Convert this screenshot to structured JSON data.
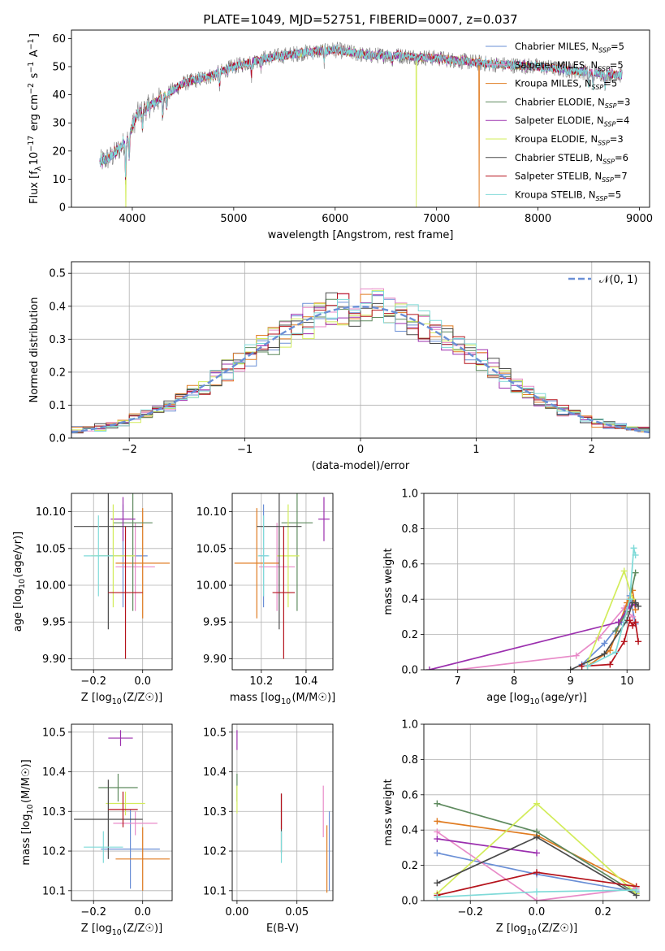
{
  "figure": {
    "title": "PLATE=1049, MJD=52751, FIBERID=0007, z=0.037"
  },
  "models": [
    {
      "name": "Chabrier MILES",
      "nssp": "5",
      "color": "#6a8fd6"
    },
    {
      "name": "Salpeter MILES",
      "nssp": "5",
      "color": "#e88ac8"
    },
    {
      "name": "Kroupa MILES",
      "nssp": "5",
      "color": "#e07b20"
    },
    {
      "name": "Chabrier ELODIE",
      "nssp": "3",
      "color": "#5e8a5e"
    },
    {
      "name": "Salpeter ELODIE",
      "nssp": "4",
      "color": "#9b2fae"
    },
    {
      "name": "Kroupa ELODIE",
      "nssp": "3",
      "color": "#d2ec5a"
    },
    {
      "name": "Chabrier STELIB",
      "nssp": "6",
      "color": "#4a4a4a"
    },
    {
      "name": "Salpeter STELIB",
      "nssp": "7",
      "color": "#b5131c"
    },
    {
      "name": "Kroupa STELIB",
      "nssp": "5",
      "color": "#7fdad8"
    }
  ],
  "chart_data": [
    {
      "id": "spectrum",
      "type": "line",
      "xlabel": "wavelength [Angstrom, rest frame]",
      "ylabel": "Flux [f_λ10^-17 erg cm^-2 s^-1 A^-1]",
      "xlim": [
        3400,
        9100
      ],
      "ylim": [
        0,
        63
      ],
      "xticks": [
        4000,
        5000,
        6000,
        7000,
        8000,
        9000
      ],
      "yticks": [
        0,
        10,
        20,
        30,
        40,
        50,
        60
      ],
      "grid": false,
      "legend_position": "top-right",
      "observed_color": "#7a7a7a",
      "observed_range": [
        3680,
        8830
      ],
      "continuum": [
        [
          3680,
          16
        ],
        [
          3800,
          18
        ],
        [
          3950,
          24
        ],
        [
          4050,
          33
        ],
        [
          4250,
          38
        ],
        [
          4500,
          44
        ],
        [
          4800,
          47
        ],
        [
          5000,
          50
        ],
        [
          5300,
          53
        ],
        [
          5700,
          55
        ],
        [
          6000,
          56
        ],
        [
          6300,
          54
        ],
        [
          6600,
          54
        ],
        [
          7000,
          53
        ],
        [
          7500,
          51
        ],
        [
          8000,
          50
        ],
        [
          8500,
          48
        ],
        [
          8830,
          47
        ]
      ],
      "absorption_lines": [
        [
          3934,
          12
        ],
        [
          3969,
          10
        ],
        [
          4102,
          6
        ],
        [
          4300,
          8
        ],
        [
          4340,
          6
        ],
        [
          4861,
          5
        ],
        [
          5175,
          5
        ],
        [
          5270,
          3
        ],
        [
          5890,
          4
        ],
        [
          6563,
          3
        ],
        [
          8498,
          5
        ],
        [
          8542,
          6
        ],
        [
          8662,
          5
        ]
      ],
      "dropouts": [
        {
          "model": 5,
          "x": 3935
        },
        {
          "model": 5,
          "x": 6800
        },
        {
          "model": 2,
          "x": 7420
        }
      ]
    },
    {
      "id": "residuals",
      "type": "histogram",
      "xlabel": "(data-model)/error",
      "ylabel": "Normed distribution",
      "xlim": [
        -2.5,
        2.5
      ],
      "ylim": [
        0,
        0.535
      ],
      "xticks": [
        -2,
        -1,
        0,
        1,
        2
      ],
      "yticks": [
        0.0,
        0.1,
        0.2,
        0.3,
        0.4,
        0.5
      ],
      "grid": true,
      "bin_width": 0.1,
      "reference_label": "𝒩(0, 1)",
      "reference_color": "#6a8fd6",
      "legend_position": "top-right"
    },
    {
      "id": "z_vs_age",
      "type": "scatter",
      "xlabel": "Z [log10(Z/Z☉)]",
      "ylabel": "age  [log10(age/yr)]",
      "xlim": [
        -0.29,
        0.12
      ],
      "ylim": [
        9.885,
        10.125
      ],
      "xticks": [
        -0.2,
        0.0
      ],
      "yticks": [
        9.9,
        9.95,
        10.0,
        10.05,
        10.1
      ],
      "grid": true,
      "points": [
        {
          "model": 0,
          "x": -0.08,
          "y": 10.04,
          "xerr": 0.1,
          "yerr": 0.07
        },
        {
          "model": 1,
          "x": -0.03,
          "y": 10.025,
          "xerr": 0.08,
          "yerr": 0.06
        },
        {
          "model": 2,
          "x": 0.0,
          "y": 10.03,
          "xerr": 0.11,
          "yerr": 0.075
        },
        {
          "model": 3,
          "x": -0.04,
          "y": 10.085,
          "xerr": 0.08,
          "yerr": 0.12
        },
        {
          "model": 4,
          "x": -0.08,
          "y": 10.09,
          "xerr": 0.05,
          "yerr": 0.03
        },
        {
          "model": 5,
          "x": -0.12,
          "y": 10.04,
          "xerr": 0.09,
          "yerr": 0.07
        },
        {
          "model": 6,
          "x": -0.14,
          "y": 10.08,
          "xerr": 0.14,
          "yerr": 0.14
        },
        {
          "model": 7,
          "x": -0.07,
          "y": 9.99,
          "xerr": 0.07,
          "yerr": 0.09
        },
        {
          "model": 8,
          "x": -0.18,
          "y": 10.04,
          "xerr": 0.06,
          "yerr": 0.055
        }
      ]
    },
    {
      "id": "mass_vs_age",
      "type": "scatter",
      "xlabel": "mass [log10(M/M☉)]",
      "ylabel": "",
      "xlim": [
        10.07,
        10.52
      ],
      "ylim": [
        9.885,
        10.125
      ],
      "xticks": [
        10.2,
        10.4
      ],
      "yticks": [
        9.9,
        9.95,
        10.0,
        10.05,
        10.1
      ],
      "grid": true,
      "points": [
        {
          "model": 0,
          "x": 10.21,
          "y": 10.04,
          "xerr": 0.02,
          "yerr": 0.07
        },
        {
          "model": 1,
          "x": 10.27,
          "y": 10.025,
          "xerr": 0.08,
          "yerr": 0.06
        },
        {
          "model": 2,
          "x": 10.18,
          "y": 10.03,
          "xerr": 0.1,
          "yerr": 0.075
        },
        {
          "model": 3,
          "x": 10.36,
          "y": 10.085,
          "xerr": 0.07,
          "yerr": 0.12
        },
        {
          "model": 4,
          "x": 10.48,
          "y": 10.09,
          "xerr": 0.025,
          "yerr": 0.03
        },
        {
          "model": 5,
          "x": 10.32,
          "y": 10.04,
          "xerr": 0.05,
          "yerr": 0.07
        },
        {
          "model": 6,
          "x": 10.28,
          "y": 10.08,
          "xerr": 0.1,
          "yerr": 0.14
        },
        {
          "model": 7,
          "x": 10.3,
          "y": 9.99,
          "xerr": 0.05,
          "yerr": 0.09
        },
        {
          "model": 8,
          "x": 10.21,
          "y": 10.04,
          "xerr": 0.025,
          "yerr": 0.055
        }
      ]
    },
    {
      "id": "age_weights",
      "type": "line",
      "xlabel": "age  [log10(age/yr)]",
      "ylabel": "mass weight",
      "xlim": [
        6.4,
        10.4
      ],
      "ylim": [
        0.0,
        1.0
      ],
      "xticks": [
        7,
        8,
        9,
        10
      ],
      "yticks": [
        0.0,
        0.2,
        0.4,
        0.6,
        0.8,
        1.0
      ],
      "grid": true,
      "series": [
        {
          "model": 0,
          "x": [
            9.2,
            9.6,
            9.9,
            10.05,
            10.15
          ],
          "y": [
            0.03,
            0.15,
            0.27,
            0.42,
            0.26
          ]
        },
        {
          "model": 1,
          "x": [
            7.0,
            9.1,
            9.5,
            9.95,
            10.1
          ],
          "y": [
            0.0,
            0.08,
            0.18,
            0.35,
            0.3
          ]
        },
        {
          "model": 2,
          "x": [
            9.3,
            9.7,
            10.0,
            10.1,
            10.15
          ],
          "y": [
            0.02,
            0.11,
            0.38,
            0.45,
            0.34
          ]
        },
        {
          "model": 3,
          "x": [
            9.8,
            10.0,
            10.15
          ],
          "y": [
            0.22,
            0.33,
            0.55
          ]
        },
        {
          "model": 4,
          "x": [
            6.5,
            9.85,
            10.05,
            10.15
          ],
          "y": [
            0.0,
            0.27,
            0.36,
            0.37
          ]
        },
        {
          "model": 5,
          "x": [
            9.3,
            9.95,
            10.1
          ],
          "y": [
            0.04,
            0.56,
            0.4
          ]
        },
        {
          "model": 6,
          "x": [
            9.0,
            9.6,
            10.0,
            10.1,
            10.15,
            10.2
          ],
          "y": [
            0.0,
            0.09,
            0.28,
            0.38,
            0.38,
            0.36
          ]
        },
        {
          "model": 7,
          "x": [
            9.2,
            9.7,
            9.95,
            10.05,
            10.1,
            10.15,
            10.2
          ],
          "y": [
            0.02,
            0.03,
            0.16,
            0.28,
            0.25,
            0.27,
            0.16
          ]
        },
        {
          "model": 8,
          "x": [
            9.3,
            9.8,
            10.05,
            10.12,
            10.15
          ],
          "y": [
            0.02,
            0.1,
            0.4,
            0.69,
            0.65
          ]
        }
      ]
    },
    {
      "id": "z_vs_mass",
      "type": "scatter",
      "xlabel": "Z [log10(Z/Z☉)]",
      "ylabel": "mass [log10(M/M☉)]",
      "xlim": [
        -0.29,
        0.12
      ],
      "ylim": [
        10.075,
        10.52
      ],
      "xticks": [
        -0.2,
        0.0
      ],
      "yticks": [
        10.1,
        10.2,
        10.3,
        10.4,
        10.5
      ],
      "grid": true,
      "points": [
        {
          "model": 0,
          "x": -0.05,
          "y": 10.205,
          "xerr": 0.12,
          "yerr": 0.1
        },
        {
          "model": 1,
          "x": -0.03,
          "y": 10.27,
          "xerr": 0.09,
          "yerr": 0.03
        },
        {
          "model": 2,
          "x": 0.0,
          "y": 10.18,
          "xerr": 0.11,
          "yerr": 0.08
        },
        {
          "model": 3,
          "x": -0.1,
          "y": 10.36,
          "xerr": 0.08,
          "yerr": 0.035
        },
        {
          "model": 4,
          "x": -0.09,
          "y": 10.485,
          "xerr": 0.05,
          "yerr": 0.02
        },
        {
          "model": 5,
          "x": -0.07,
          "y": 10.32,
          "xerr": 0.08,
          "yerr": 0.03
        },
        {
          "model": 6,
          "x": -0.14,
          "y": 10.28,
          "xerr": 0.14,
          "yerr": 0.1
        },
        {
          "model": 7,
          "x": -0.08,
          "y": 10.305,
          "xerr": 0.06,
          "yerr": 0.045
        },
        {
          "model": 8,
          "x": -0.16,
          "y": 10.21,
          "xerr": 0.08,
          "yerr": 0.04
        }
      ]
    },
    {
      "id": "ebv_vs_mass",
      "type": "scatter",
      "xlabel": "E(B-V)",
      "ylabel": "",
      "xlim": [
        -0.004,
        0.08
      ],
      "ylim": [
        10.075,
        10.52
      ],
      "xticks": [
        0.0,
        0.05
      ],
      "yticks": [
        10.1,
        10.2,
        10.3,
        10.4,
        10.5
      ],
      "grid": true,
      "points": [
        {
          "model": 0,
          "x": 0.077,
          "y": 10.2,
          "xerr": 0.0,
          "yerr": 0.1
        },
        {
          "model": 1,
          "x": 0.072,
          "y": 10.3,
          "xerr": 0.0,
          "yerr": 0.065
        },
        {
          "model": 2,
          "x": 0.075,
          "y": 10.18,
          "xerr": 0.0,
          "yerr": 0.085
        },
        {
          "model": 3,
          "x": 0.0,
          "y": 10.36,
          "xerr": 0.0,
          "yerr": 0.035
        },
        {
          "model": 4,
          "x": 0.0,
          "y": 10.48,
          "xerr": 0.0,
          "yerr": 0.025
        },
        {
          "model": 5,
          "x": 0.0,
          "y": 10.33,
          "xerr": 0.0,
          "yerr": 0.035
        },
        {
          "model": 6,
          "x": 0.037,
          "y": 10.27,
          "xerr": 0.0,
          "yerr": 0.075
        },
        {
          "model": 7,
          "x": 0.037,
          "y": 10.3,
          "xerr": 0.0,
          "yerr": 0.045
        },
        {
          "model": 8,
          "x": 0.037,
          "y": 10.21,
          "xerr": 0.0,
          "yerr": 0.04
        }
      ]
    },
    {
      "id": "z_weights",
      "type": "line",
      "xlabel": "Z [log10(Z/Z☉)]",
      "ylabel": "mass weight",
      "xlim": [
        -0.34,
        0.34
      ],
      "ylim": [
        0.0,
        1.0
      ],
      "xticks": [
        -0.2,
        0.0,
        0.2
      ],
      "yticks": [
        0.0,
        0.2,
        0.4,
        0.6,
        0.8,
        1.0
      ],
      "grid": true,
      "series": [
        {
          "model": 0,
          "x": [
            -0.3,
            0.0,
            0.3
          ],
          "y": [
            0.27,
            0.15,
            0.05
          ]
        },
        {
          "model": 1,
          "x": [
            -0.3,
            0.0,
            0.3
          ],
          "y": [
            0.39,
            0.0,
            0.07
          ]
        },
        {
          "model": 2,
          "x": [
            -0.3,
            0.0,
            0.3
          ],
          "y": [
            0.45,
            0.37,
            0.08
          ]
        },
        {
          "model": 3,
          "x": [
            -0.3,
            0.0,
            0.3
          ],
          "y": [
            0.55,
            0.39,
            0.04
          ]
        },
        {
          "model": 4,
          "x": [
            -0.3,
            0.0
          ],
          "y": [
            0.35,
            0.27
          ]
        },
        {
          "model": 5,
          "x": [
            -0.3,
            0.0,
            0.3
          ],
          "y": [
            0.04,
            0.55,
            0.04
          ]
        },
        {
          "model": 6,
          "x": [
            -0.3,
            0.0,
            0.3
          ],
          "y": [
            0.1,
            0.36,
            0.03
          ]
        },
        {
          "model": 7,
          "x": [
            -0.3,
            0.0,
            0.3
          ],
          "y": [
            0.03,
            0.16,
            0.08
          ]
        },
        {
          "model": 8,
          "x": [
            -0.3,
            0.0,
            0.3
          ],
          "y": [
            0.02,
            0.05,
            0.06
          ]
        }
      ]
    }
  ]
}
